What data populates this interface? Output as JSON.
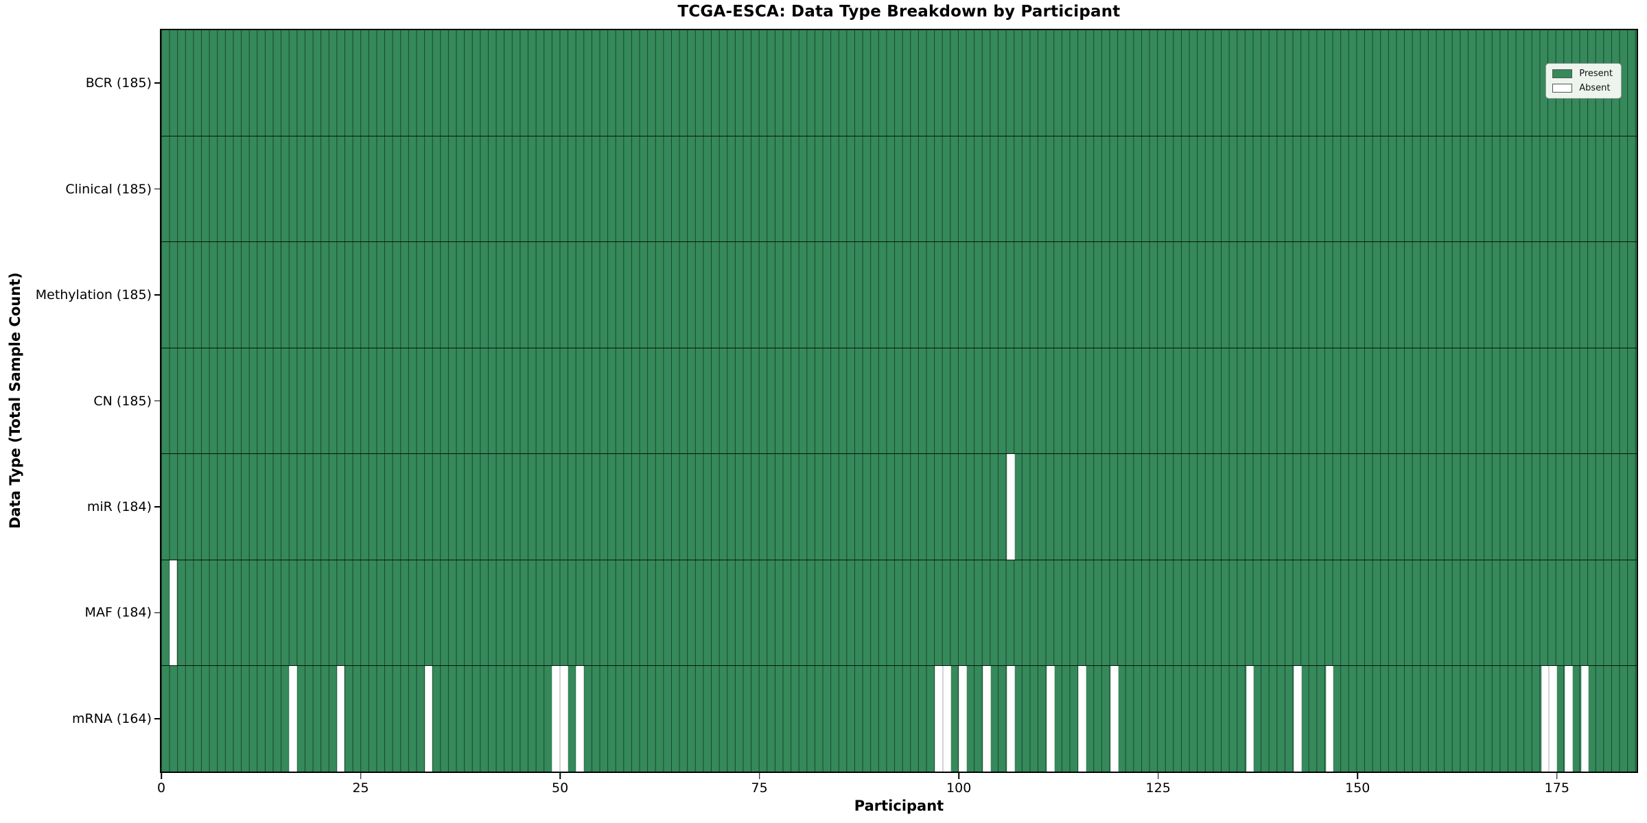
{
  "chart_data": {
    "type": "heatmap",
    "title": "TCGA-ESCA: Data Type Breakdown by Participant",
    "xlabel": "Participant",
    "ylabel": "Data Type (Total Sample Count)",
    "n_participants": 185,
    "x_ticks": [
      0,
      25,
      50,
      75,
      100,
      125,
      150,
      175
    ],
    "axis_range": {
      "x": [
        0,
        185
      ],
      "rows": 7
    },
    "rows": [
      {
        "label": "BCR (185)",
        "total": 185,
        "absent_participants": []
      },
      {
        "label": "Clinical (185)",
        "total": 185,
        "absent_participants": []
      },
      {
        "label": "Methylation (185)",
        "total": 185,
        "absent_participants": []
      },
      {
        "label": "CN (185)",
        "total": 185,
        "absent_participants": []
      },
      {
        "label": "miR (184)",
        "total": 184,
        "absent_participants": [
          106
        ]
      },
      {
        "label": "MAF (184)",
        "total": 184,
        "absent_participants": [
          1
        ]
      },
      {
        "label": "mRNA (164)",
        "total": 164,
        "absent_participants": [
          16,
          22,
          33,
          49,
          50,
          52,
          97,
          98,
          100,
          103,
          106,
          111,
          115,
          119,
          136,
          142,
          146,
          173,
          174,
          176,
          178
        ]
      }
    ],
    "legend": {
      "position": "upper right",
      "entries": [
        {
          "label": "Present",
          "color": "#35895A"
        },
        {
          "label": "Absent",
          "color": "#FFFFFF"
        }
      ]
    },
    "colors": {
      "present": "#35895A",
      "absent": "#FFFFFF",
      "grid_line": "rgba(0,0,0,0.5)",
      "spine": "#000000"
    },
    "grid": true
  }
}
